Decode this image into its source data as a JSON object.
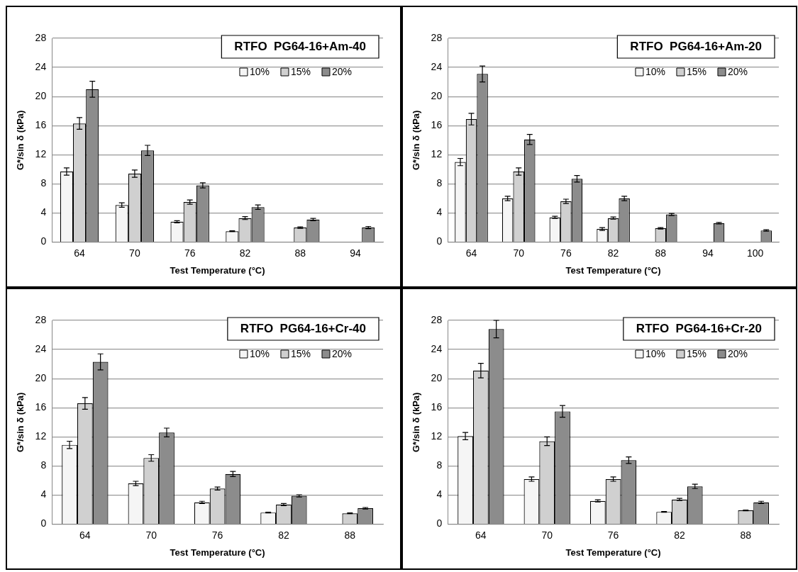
{
  "chart_data": [
    {
      "type": "bar",
      "title": "RTFO  PG64-16+Am-40",
      "xlabel": "Test Temperature (°C)",
      "ylabel": "G*/sin δ (kPa)",
      "categories": [
        "64",
        "70",
        "76",
        "82",
        "88",
        "94"
      ],
      "ylim": [
        0,
        28
      ],
      "yticks": [
        0,
        4,
        8,
        12,
        16,
        20,
        24,
        28
      ],
      "grid": "y",
      "legend": "top right",
      "series": [
        {
          "name": "10%",
          "color": "#f5f5f5",
          "values": [
            9.7,
            5.1,
            2.8,
            1.5,
            null,
            null
          ],
          "errors": [
            0.5,
            0.3,
            0.15,
            0.05,
            null,
            null
          ]
        },
        {
          "name": "15%",
          "color": "#d0d0d0",
          "values": [
            16.3,
            9.4,
            5.5,
            3.3,
            2.0,
            null
          ],
          "errors": [
            0.8,
            0.5,
            0.3,
            0.2,
            0.1,
            null
          ]
        },
        {
          "name": "20%",
          "color": "#8c8c8c",
          "values": [
            21.0,
            12.6,
            7.8,
            4.8,
            3.1,
            2.0
          ],
          "errors": [
            1.1,
            0.7,
            0.35,
            0.3,
            0.15,
            0.15
          ]
        }
      ]
    },
    {
      "type": "bar",
      "title": "RTFO  PG64-16+Am-20",
      "xlabel": "Test Temperature (°C)",
      "ylabel": "G*/sin δ (kPa)",
      "categories": [
        "64",
        "70",
        "76",
        "82",
        "88",
        "94",
        "100"
      ],
      "ylim": [
        0,
        28
      ],
      "yticks": [
        0,
        4,
        8,
        12,
        16,
        20,
        24,
        28
      ],
      "grid": "y",
      "legend": "top right",
      "series": [
        {
          "name": "10%",
          "color": "#f5f5f5",
          "values": [
            11.0,
            6.0,
            3.4,
            1.8,
            null,
            null,
            null
          ],
          "errors": [
            0.5,
            0.3,
            0.15,
            0.2,
            null,
            null,
            null
          ]
        },
        {
          "name": "15%",
          "color": "#d0d0d0",
          "values": [
            16.9,
            9.7,
            5.6,
            3.3,
            1.9,
            null,
            null
          ],
          "errors": [
            0.8,
            0.5,
            0.3,
            0.15,
            0.1,
            null,
            null
          ]
        },
        {
          "name": "20%",
          "color": "#8c8c8c",
          "values": [
            23.1,
            14.1,
            8.7,
            6.0,
            3.8,
            2.6,
            1.6
          ],
          "errors": [
            1.1,
            0.7,
            0.45,
            0.3,
            0.15,
            0.1,
            0.1
          ]
        }
      ]
    },
    {
      "type": "bar",
      "title": "RTFO  PG64-16+Cr-40",
      "xlabel": "Test Temperature (°C)",
      "ylabel": "G*/sin δ (kPa)",
      "categories": [
        "64",
        "70",
        "76",
        "82",
        "88"
      ],
      "ylim": [
        0,
        28
      ],
      "yticks": [
        0,
        4,
        8,
        12,
        16,
        20,
        24,
        28
      ],
      "grid": "y",
      "legend": "top right",
      "series": [
        {
          "name": "10%",
          "color": "#f5f5f5",
          "values": [
            10.9,
            5.6,
            3.0,
            1.6,
            null
          ],
          "errors": [
            0.5,
            0.3,
            0.15,
            0.05,
            null
          ]
        },
        {
          "name": "15%",
          "color": "#d0d0d0",
          "values": [
            16.6,
            9.1,
            4.9,
            2.7,
            1.5
          ],
          "errors": [
            0.8,
            0.45,
            0.2,
            0.15,
            0.05
          ]
        },
        {
          "name": "20%",
          "color": "#8c8c8c",
          "values": [
            22.3,
            12.6,
            6.9,
            3.9,
            2.2
          ],
          "errors": [
            1.1,
            0.6,
            0.35,
            0.15,
            0.1
          ]
        }
      ]
    },
    {
      "type": "bar",
      "title": "RTFO  PG64-16+Cr-20",
      "xlabel": "Test Temperature (°C)",
      "ylabel": "G*/sin δ (kPa)",
      "categories": [
        "64",
        "70",
        "76",
        "82",
        "88"
      ],
      "ylim": [
        0,
        28
      ],
      "yticks": [
        0,
        4,
        8,
        12,
        16,
        20,
        24,
        28
      ],
      "grid": "y",
      "legend": "top right",
      "series": [
        {
          "name": "10%",
          "color": "#f5f5f5",
          "values": [
            12.1,
            6.2,
            3.2,
            1.7,
            null
          ],
          "errors": [
            0.5,
            0.3,
            0.15,
            0.05,
            null
          ]
        },
        {
          "name": "15%",
          "color": "#d0d0d0",
          "values": [
            21.1,
            11.4,
            6.2,
            3.4,
            1.9
          ],
          "errors": [
            1.0,
            0.6,
            0.3,
            0.15,
            0.05
          ]
        },
        {
          "name": "20%",
          "color": "#8c8c8c",
          "values": [
            26.8,
            15.5,
            8.8,
            5.2,
            3.0
          ],
          "errors": [
            1.2,
            0.8,
            0.45,
            0.3,
            0.15
          ]
        }
      ]
    }
  ]
}
